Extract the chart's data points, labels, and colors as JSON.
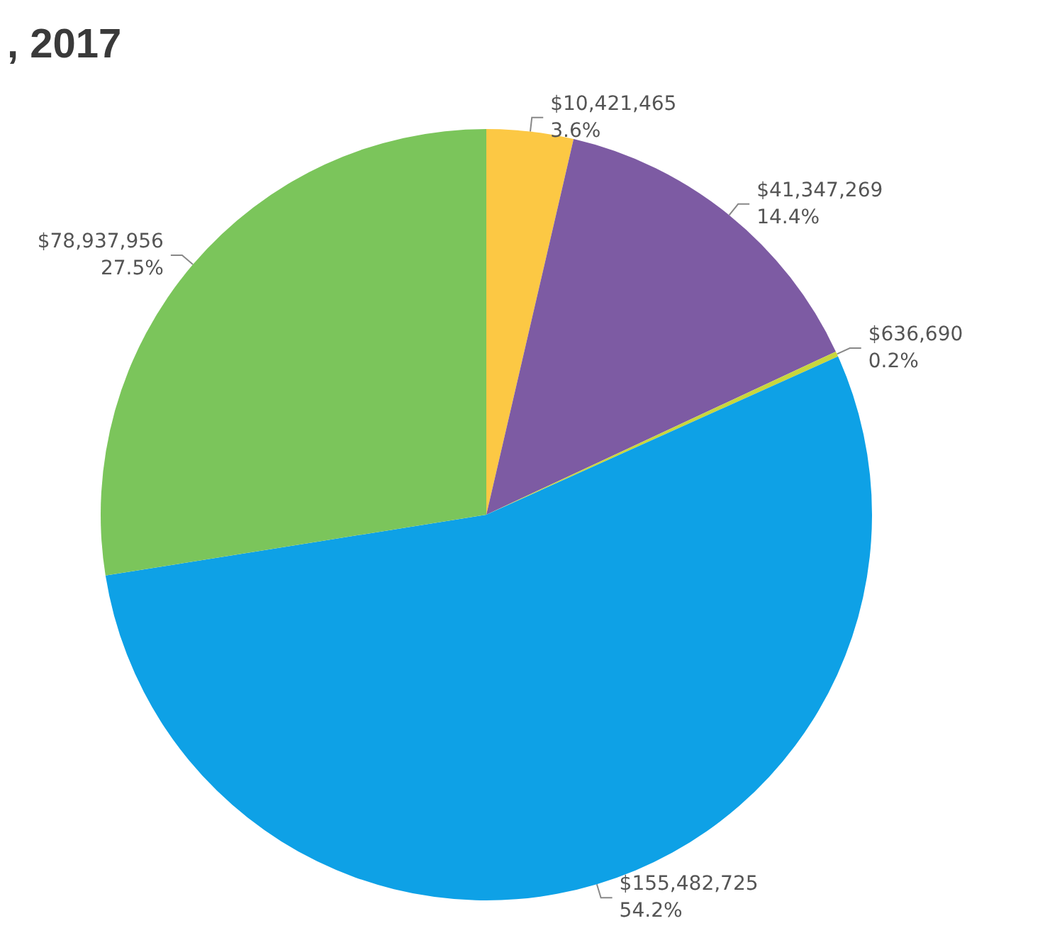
{
  "chart_data": {
    "type": "pie",
    "title": ", 2017",
    "categories": [
      null,
      null,
      null,
      null,
      null
    ],
    "values": [
      10421465,
      41347269,
      636690,
      155482725,
      78937956
    ],
    "colors": [
      "#fcc844",
      "#7d5ba3",
      "#c9d63c",
      "#0ea1e6",
      "#7bc55b"
    ],
    "value_labels": [
      "$10,421,465\n3.6%",
      "$41,347,269\n14.4%",
      "$636,690\n0.2%",
      "$155,482,725\n54.2%",
      "$78,937,956\n27.5%"
    ]
  }
}
